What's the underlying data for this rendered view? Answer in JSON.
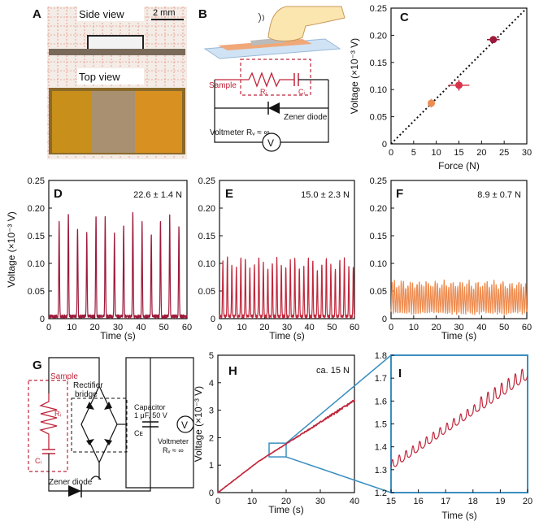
{
  "panels": {
    "A": {
      "letter": "A",
      "side_view": "Side view",
      "top_view": "Top view",
      "scale_bar": "2 mm"
    },
    "B": {
      "letter": "B",
      "sample": "Sample",
      "ri": "Rᵢ",
      "ci": "Cᵢ",
      "zener": "Zener diode",
      "voltmeter": "Voltmeter Rᵥ ≈ ∞",
      "v": "V"
    },
    "C": {
      "letter": "C"
    },
    "D": {
      "letter": "D"
    },
    "E": {
      "letter": "E"
    },
    "F": {
      "letter": "F"
    },
    "G": {
      "letter": "G",
      "sample": "Sample",
      "ri": "Rᵢ",
      "ci": "Cᵢ",
      "rectifier": [
        "Rectifier",
        "bridge"
      ],
      "capacitor": [
        "Capacitor",
        "1 μF, 50 V",
        "Cᴇ"
      ],
      "voltmeter": [
        "Voltmeter",
        "Rᵥ ≈ ∞"
      ],
      "zener": "Zener diode",
      "v": "V"
    },
    "H": {
      "letter": "H"
    },
    "I": {
      "letter": "I"
    }
  },
  "colors": {
    "dark_red": "#9e1a3a",
    "red": "#c0263a",
    "mid_red": "#d6344a",
    "orange": "#ee8c50",
    "zoom_box": "#3b8fc0",
    "axis": "#111111"
  },
  "chart_data": [
    {
      "id": "C",
      "type": "scatter",
      "xlabel": "Force (N)",
      "ylabel": "Voltage (×10⁻³ V)",
      "xlim": [
        0,
        30
      ],
      "ylim": [
        0,
        0.25
      ],
      "xticks": [
        "0",
        "5",
        "10",
        "15",
        "20",
        "25",
        "30"
      ],
      "yticks": [
        "0",
        "0.05",
        "0.10",
        "0.15",
        "0.20",
        "0.25"
      ],
      "points": [
        {
          "x": 8.9,
          "y": 0.075,
          "xerr": 0.7,
          "yerr": 0.008,
          "color": "#ee8c50"
        },
        {
          "x": 15.0,
          "y": 0.108,
          "xerr": 2.3,
          "yerr": 0.01,
          "color": "#d6344a"
        },
        {
          "x": 22.6,
          "y": 0.192,
          "xerr": 1.4,
          "yerr": 0.006,
          "color": "#9e1a3a"
        }
      ],
      "fit_line": [
        [
          0,
          0
        ],
        [
          30,
          0.25
        ]
      ]
    },
    {
      "id": "D",
      "type": "line",
      "annotation": "22.6 ± 1.4 N",
      "xlabel": "Time (s)",
      "ylabel": "Voltage (×10⁻³ V)",
      "xlim": [
        0,
        60
      ],
      "ylim": [
        0,
        0.25
      ],
      "xticks": [
        "0",
        "10",
        "20",
        "30",
        "40",
        "50",
        "60"
      ],
      "yticks": [
        "0",
        "0.05",
        "0.10",
        "0.15",
        "0.20",
        "0.25"
      ],
      "color": "#9e1a3a",
      "peak_period_s": 4.0,
      "first_peak_s": 4.5,
      "peak_value": 0.19,
      "baseline": 0.004
    },
    {
      "id": "E",
      "type": "line",
      "annotation": "15.0 ± 2.3 N",
      "xlabel": "Time (s)",
      "ylabel": "",
      "xlim": [
        0,
        60
      ],
      "ylim": [
        0,
        0.25
      ],
      "xticks": [
        "0",
        "10",
        "20",
        "30",
        "40",
        "50",
        "60"
      ],
      "yticks": [
        "0",
        "0.05",
        "0.10",
        "0.15",
        "0.20",
        "0.25"
      ],
      "color": "#c0263a",
      "peak_period_s": 2.0,
      "first_peak_s": 1.5,
      "peak_value": 0.108,
      "baseline": 0.004
    },
    {
      "id": "F",
      "type": "line",
      "annotation": "8.9 ± 0.7 N",
      "xlabel": "Time (s)",
      "ylabel": "",
      "xlim": [
        0,
        60
      ],
      "ylim": [
        0,
        0.25
      ],
      "xticks": [
        "0",
        "10",
        "20",
        "30",
        "40",
        "50",
        "60"
      ],
      "yticks": [
        "0",
        "0.05",
        "0.10",
        "0.15",
        "0.20",
        "0.25"
      ],
      "color": "#ee8c50",
      "peak_period_s": 1.0,
      "first_peak_s": 0.5,
      "peak_value": 0.062,
      "baseline": 0.006
    },
    {
      "id": "H",
      "type": "line",
      "annotation": "ca. 15 N",
      "xlabel": "Time (s)",
      "ylabel": "Voltage (×10⁻³ V)",
      "xlim": [
        0,
        40
      ],
      "ylim": [
        0,
        5
      ],
      "xticks": [
        "0",
        "10",
        "20",
        "30",
        "40"
      ],
      "yticks": [
        "0",
        "1",
        "2",
        "3",
        "4",
        "5"
      ],
      "color": "#c0263a",
      "start": [
        0,
        0
      ],
      "end": [
        40,
        3.35
      ],
      "zoom_window": {
        "x": [
          15,
          20
        ],
        "y": [
          1.3,
          1.8
        ]
      }
    },
    {
      "id": "I",
      "type": "line",
      "xlabel": "Time (s)",
      "ylabel": "",
      "xlim": [
        15,
        20
      ],
      "ylim": [
        1.2,
        1.8
      ],
      "xticks": [
        "15",
        "16",
        "17",
        "18",
        "19",
        "20"
      ],
      "yticks": [
        "1.2",
        "1.3",
        "1.4",
        "1.5",
        "1.6",
        "1.7",
        "1.8"
      ],
      "color": "#c0263a",
      "start": [
        15,
        1.31
      ],
      "end": [
        20,
        1.71
      ],
      "ripple_period_s": 0.25,
      "ripple_amp": 0.03
    }
  ]
}
